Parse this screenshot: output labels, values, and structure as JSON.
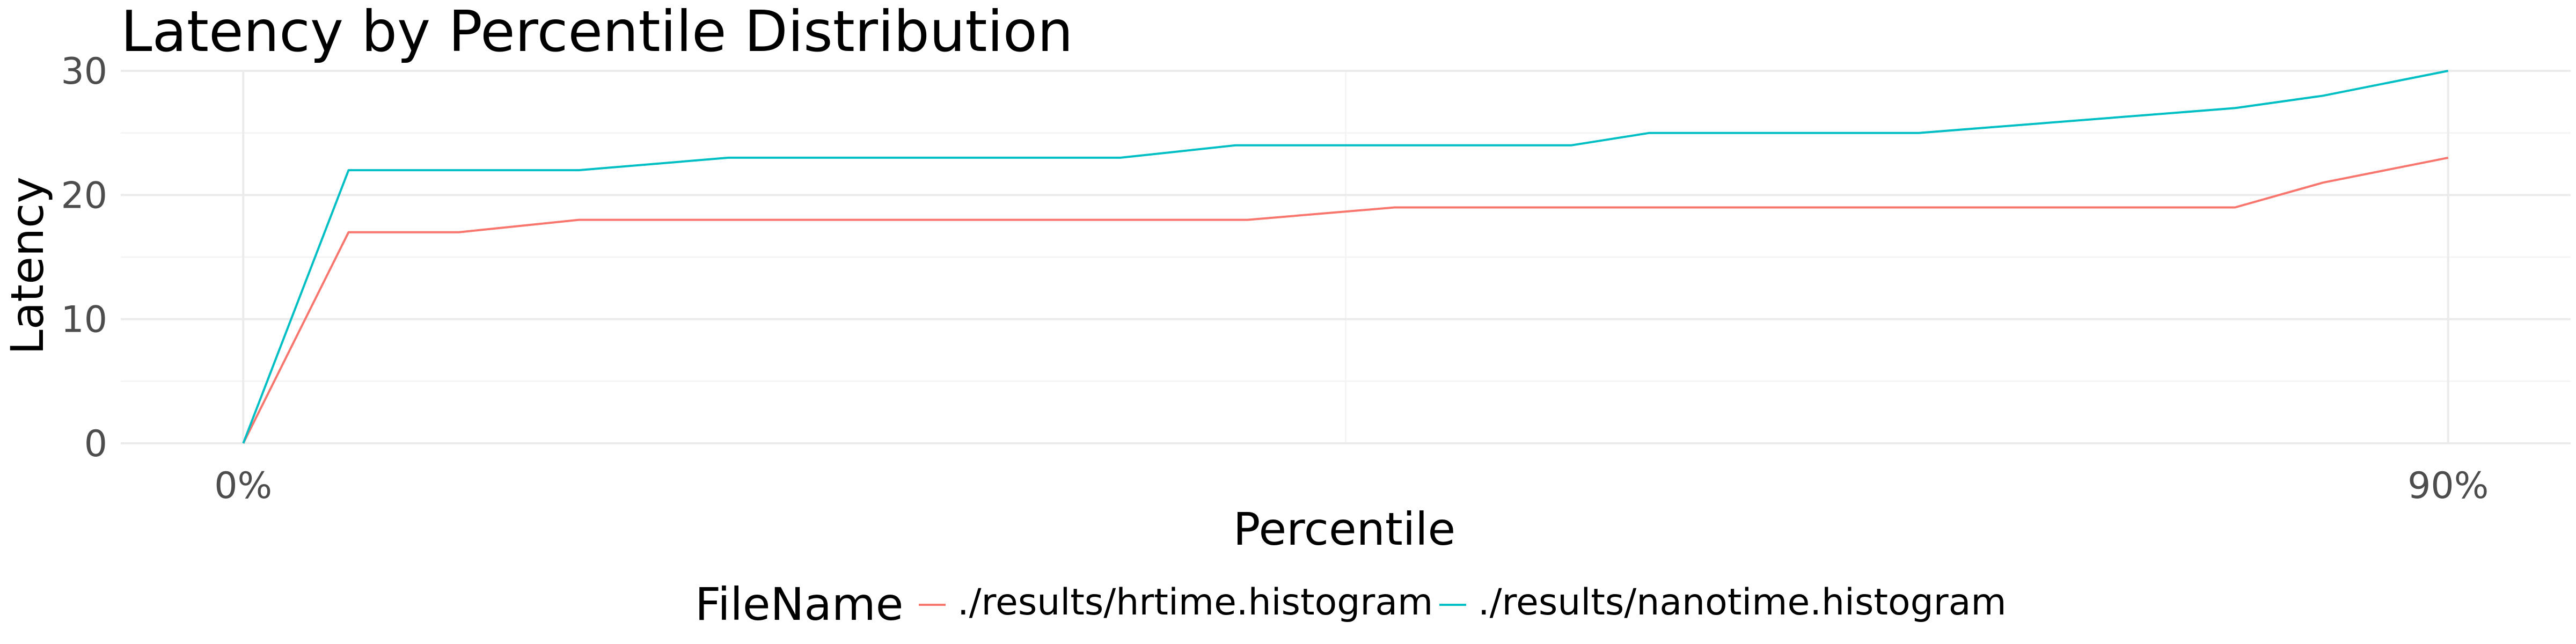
{
  "chart_data": {
    "type": "line",
    "title": "Latency by Percentile Distribution",
    "xlabel": "Percentile",
    "ylabel": "Latency",
    "xlim": [
      -5,
      95
    ],
    "ylim": [
      0,
      30
    ],
    "grid": true,
    "x_ticks": [
      {
        "value": 0,
        "label": "0%"
      },
      {
        "value": 90,
        "label": "90%"
      }
    ],
    "y_ticks": [
      {
        "value": 0,
        "label": "0"
      },
      {
        "value": 10,
        "label": "10"
      },
      {
        "value": 20,
        "label": "20"
      },
      {
        "value": 30,
        "label": "30"
      }
    ],
    "legend": {
      "title": "FileName",
      "position": "bottom"
    },
    "series": [
      {
        "name": "./results/hrtime.histogram",
        "color": "#F8766D",
        "x": [
          0,
          4.3,
          8.8,
          13.7,
          41.0,
          47.0,
          81.3,
          84.9,
          90
        ],
        "values": [
          0,
          17,
          17,
          18,
          18,
          19,
          19,
          21,
          23
        ]
      },
      {
        "name": "./results/nanotime.histogram",
        "color": "#00BFC4",
        "x": [
          0,
          4.3,
          13.7,
          19.8,
          35.8,
          40.5,
          54.2,
          57.4,
          68.4,
          81.3,
          84.9,
          90
        ],
        "values": [
          0,
          22,
          22,
          23,
          23,
          24,
          24,
          25,
          25,
          27,
          28,
          30
        ]
      }
    ]
  }
}
